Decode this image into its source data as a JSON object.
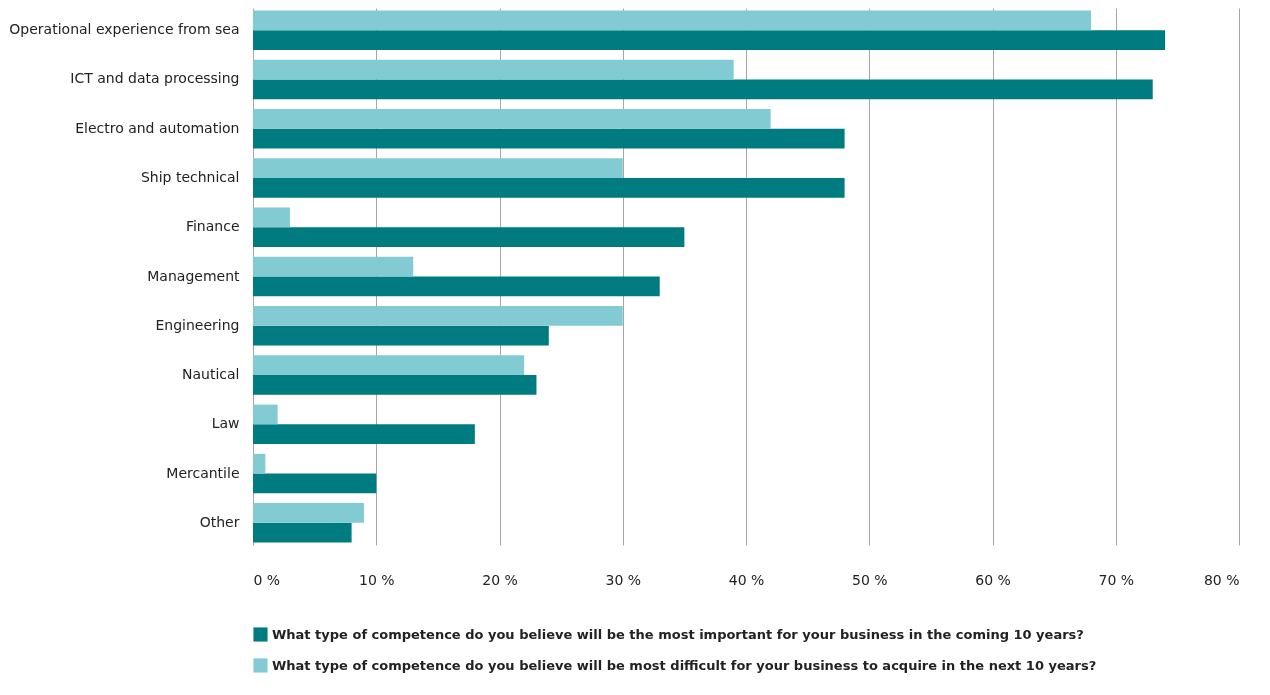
{
  "chart_data": {
    "type": "bar",
    "orientation": "horizontal",
    "categories": [
      "Operational experience from sea",
      "ICT and data processing",
      "Electro and automation",
      "Ship technical",
      "Finance",
      "Management",
      "Engineering",
      "Nautical",
      "Law",
      "Mercantile",
      "Other"
    ],
    "series": [
      {
        "name": "What type of competence do you believe will be the most important for your business in the coming 10 years?",
        "color": "#007b80",
        "values": [
          74,
          73,
          48,
          48,
          35,
          33,
          24,
          23,
          18,
          10,
          8
        ]
      },
      {
        "name": "What type of competence do you believe will be most difficult for your business to acquire in the next 10 years?",
        "color": "#82cbd3",
        "values": [
          68,
          39,
          42,
          30,
          3,
          13,
          30,
          22,
          2,
          1,
          9
        ]
      }
    ],
    "xlim": [
      0,
      80
    ],
    "xticks": [
      {
        "value": 0,
        "label": "0 %"
      },
      {
        "value": 10,
        "label": "10 %"
      },
      {
        "value": 20,
        "label": "20 %"
      },
      {
        "value": 30,
        "label": "30 %"
      },
      {
        "value": 40,
        "label": "40 %"
      },
      {
        "value": 50,
        "label": "50 %"
      },
      {
        "value": 60,
        "label": "60 %"
      },
      {
        "value": 70,
        "label": "70 %"
      },
      {
        "value": 80,
        "label": "80 %"
      }
    ],
    "grid": "x",
    "legend": "bottom"
  }
}
